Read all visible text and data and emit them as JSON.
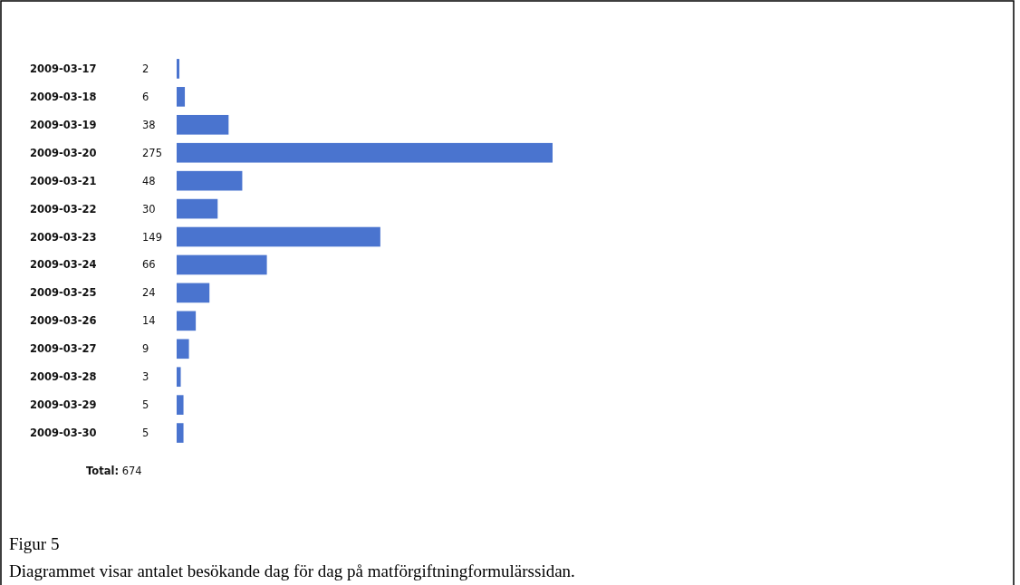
{
  "chart_data": {
    "type": "bar",
    "orientation": "horizontal",
    "data_labels": true,
    "color": "#4a74cf",
    "categories": [
      "2009-03-17",
      "2009-03-18",
      "2009-03-19",
      "2009-03-20",
      "2009-03-21",
      "2009-03-22",
      "2009-03-23",
      "2009-03-24",
      "2009-03-25",
      "2009-03-26",
      "2009-03-27",
      "2009-03-28",
      "2009-03-29",
      "2009-03-30"
    ],
    "values": [
      2,
      6,
      38,
      275,
      48,
      30,
      149,
      66,
      24,
      14,
      9,
      3,
      5,
      5
    ],
    "annotations": [
      "Total: 674",
      "Figur 5",
      "Diagrammet visar antalet besökande dag för dag på matförgiftningformulärssidan."
    ]
  }
}
